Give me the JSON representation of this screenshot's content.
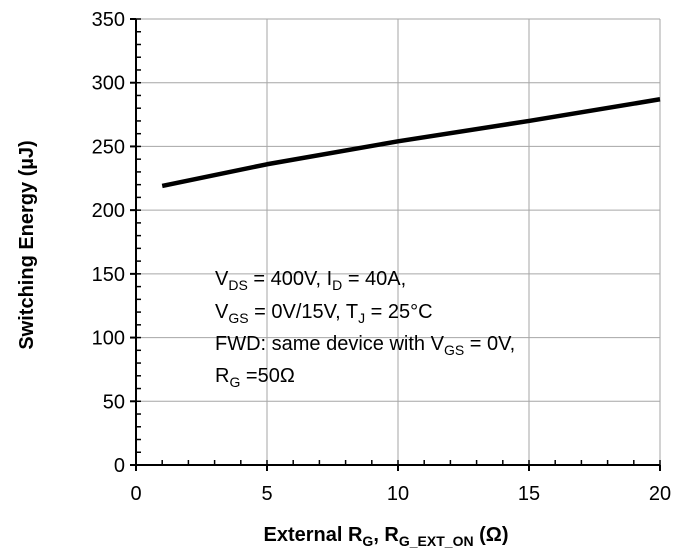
{
  "chart_data": {
    "type": "line",
    "xlabel": {
      "main": "External R",
      "sub1": "G",
      "mid": ", R",
      "sub2": "G_EXT_ON",
      "unit": " (Ω)"
    },
    "ylabel": "Switching Energy (µJ)",
    "xlim": [
      0,
      20
    ],
    "ylim": [
      0,
      350
    ],
    "x_ticks": [
      0,
      5,
      10,
      15,
      20
    ],
    "y_ticks": [
      0,
      50,
      100,
      150,
      200,
      250,
      300,
      350
    ],
    "grid": true,
    "series": [
      {
        "color": "#000000",
        "x": [
          1,
          5,
          10,
          15,
          20
        ],
        "y": [
          219,
          236,
          254,
          270,
          287
        ]
      }
    ],
    "annotation": {
      "line1": {
        "a": "V",
        "a_sub": "DS",
        "b": " = 400V, I",
        "b_sub": "D",
        "c": " = 40A,"
      },
      "line2": {
        "a": "V",
        "a_sub": "GS",
        "b": " = 0V/15V, T",
        "b_sub": "J",
        "c": " = 25°C"
      },
      "line3": {
        "a": "FWD: same device with V",
        "a_sub": "GS",
        "b": " = 0V,"
      },
      "line4": {
        "a": "R",
        "a_sub": "G",
        "b": " =50Ω"
      }
    }
  }
}
